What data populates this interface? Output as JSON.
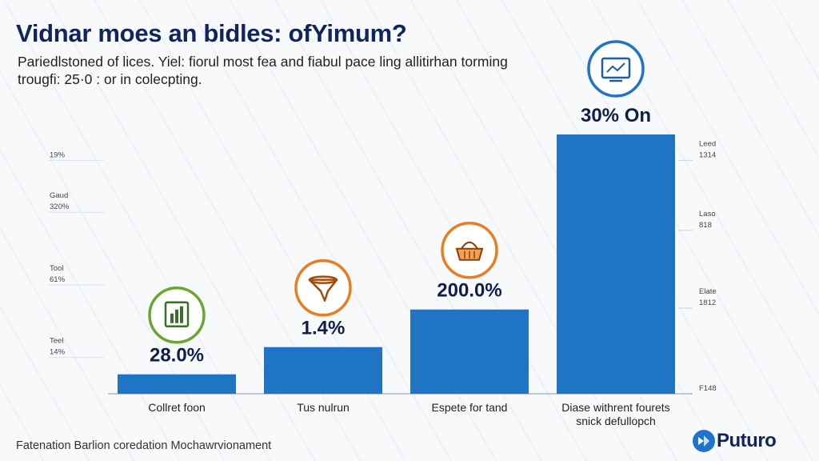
{
  "title": "Vidnar moes an bidles: ofYimum?",
  "subtitle_line1": "Pariedlstoned of lices. Yiel: fiorul most fea and fiabul pace ling allitirhan torming",
  "subtitle_line2": "trougfi: 25·0 : or in colecpting.",
  "footer": "Fatenation Barlion coredation Mochawrvionament",
  "logo_text": "Puturo",
  "colors": {
    "bar": "#1f74c4",
    "green": "#6aa631",
    "orange": "#e87e22",
    "blue_icon": "#1f74c4",
    "navy": "#10265a"
  },
  "chart_data": {
    "type": "bar",
    "title": "Vidnar moes an bidles: ofYimum?",
    "categories": [
      "Collret foon",
      "Tus nulrun",
      "Espete for tand",
      "Diase withrent fourets snick defullopch"
    ],
    "categories_lines": [
      [
        "Collret foon"
      ],
      [
        "Tus nulrun"
      ],
      [
        "Espete for tand"
      ],
      [
        "Diase withrent fourets",
        "snick defullopch"
      ]
    ],
    "values": [
      7.5,
      18.0,
      32.5,
      100
    ],
    "value_labels": [
      "28.0%",
      "1.4%",
      "200.0%",
      "30% On"
    ],
    "ylim": [
      0,
      100
    ],
    "left_ticks": [
      {
        "name": "",
        "value": "19%",
        "at": 90
      },
      {
        "name": "Gaud",
        "value": "320%",
        "at": 70
      },
      {
        "name": "Tool",
        "value": "61%",
        "at": 42
      },
      {
        "name": "Teel",
        "value": "14%",
        "at": 14
      }
    ],
    "right_ticks": [
      {
        "name": "Leed",
        "value": "1314",
        "at": 90
      },
      {
        "name": "Laso",
        "value": "818",
        "at": 63
      },
      {
        "name": "Elate",
        "value": "1812",
        "at": 33
      },
      {
        "name": "",
        "value": "F148",
        "at": 0
      }
    ],
    "icons": [
      "bar-chart-icon",
      "funnel-icon",
      "basket-icon",
      "monitor-chart-icon"
    ],
    "icon_colors": [
      "#6aa631",
      "#e87e22",
      "#e87e22",
      "#1f74c4"
    ]
  }
}
